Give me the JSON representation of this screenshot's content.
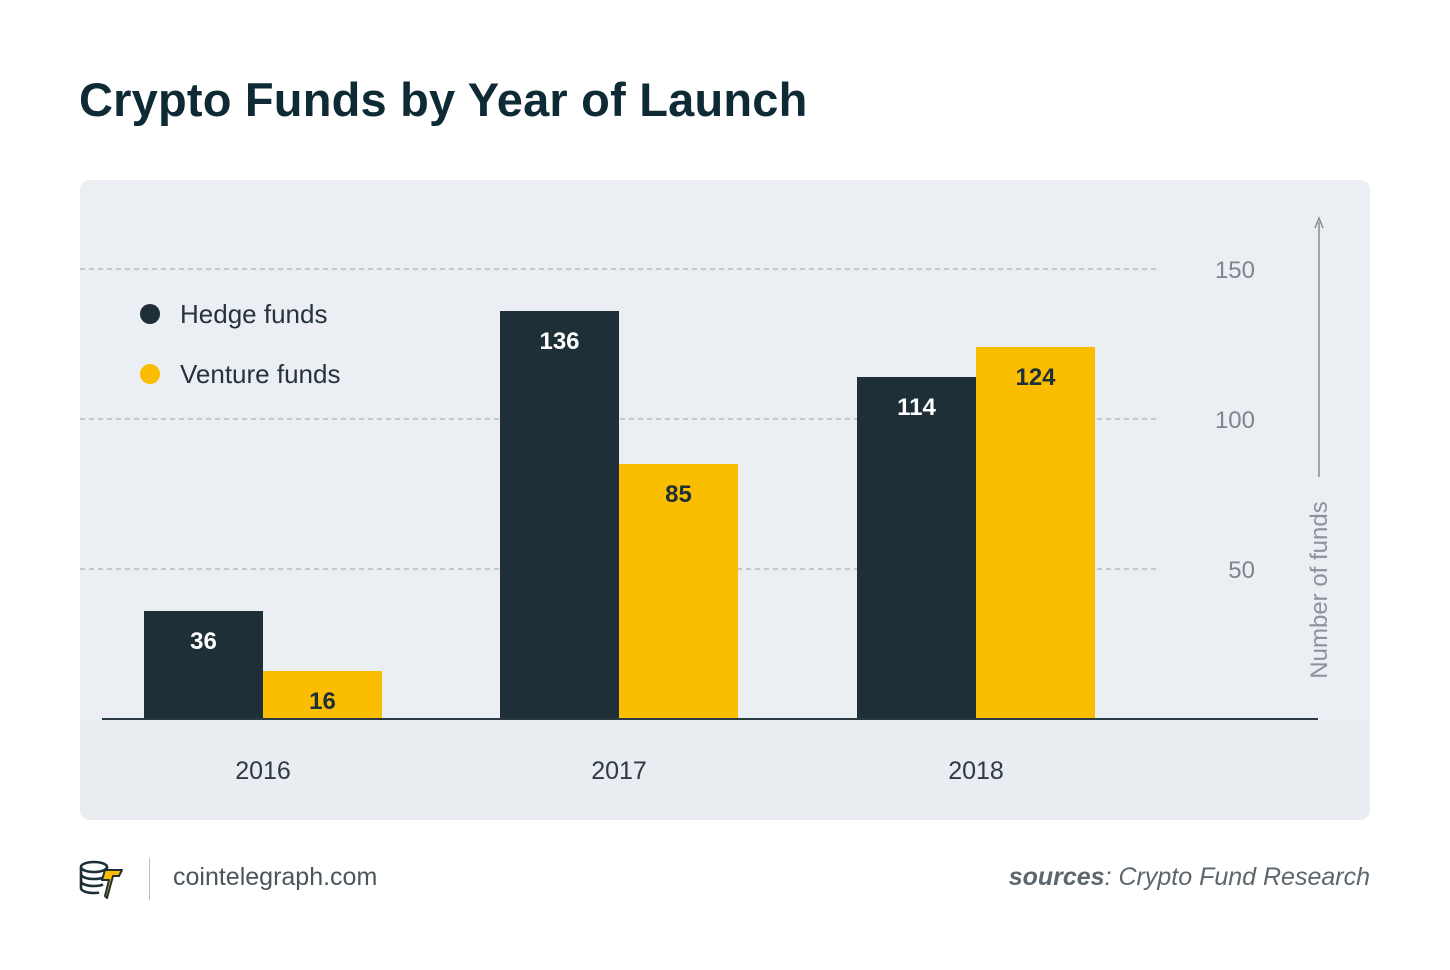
{
  "header": {
    "title": "Crypto Funds by Year of Launch"
  },
  "colors": {
    "hedge": "#1f2f38",
    "venture": "#fbbd00",
    "panel": "#ebeff3",
    "baseline": "#2b3a42",
    "grid": "#9aa1a6",
    "tick_text": "#7d868c",
    "category_text": "#2d3a41"
  },
  "chart_data": {
    "type": "bar",
    "title": "Crypto Funds by Year of Launch",
    "categories": [
      "2016",
      "2017",
      "2018"
    ],
    "series": [
      {
        "name": "Hedge funds",
        "values": [
          36,
          136,
          114
        ],
        "color": "#1f2f38"
      },
      {
        "name": "Venture funds",
        "values": [
          16,
          85,
          124
        ],
        "color": "#fbbd00"
      }
    ],
    "xlabel": "",
    "ylabel": "Number of funds",
    "ylim": [
      0,
      150
    ],
    "yticks": [
      50,
      100,
      150
    ],
    "grid": true,
    "legend": "top-left",
    "axis_side": "right"
  },
  "footer": {
    "site": "cointelegraph.com",
    "source_label": "sources",
    "source_text": ": Crypto Fund Research",
    "logo_icon": "cointelegraph-logo-icon"
  }
}
